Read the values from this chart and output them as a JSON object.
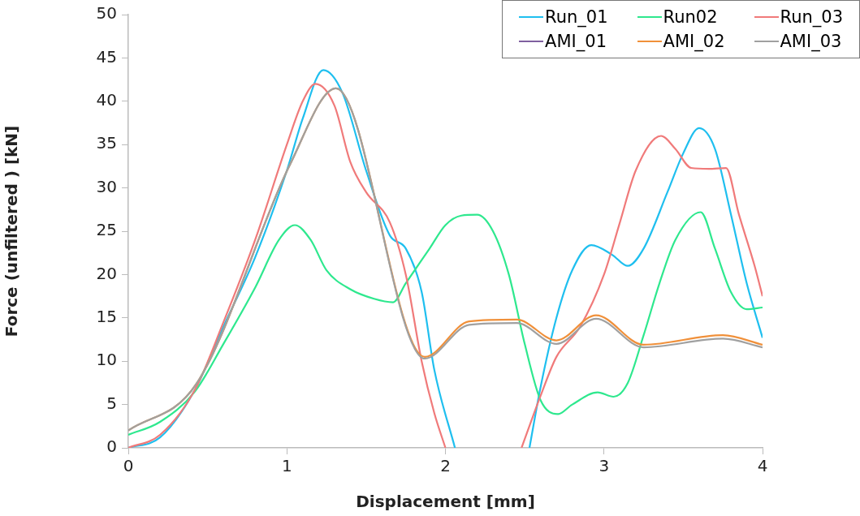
{
  "chart_data": {
    "type": "line",
    "xlabel": "Displacement [mm]",
    "ylabel": "Force (unfiltered ) [kN]",
    "xlim": [
      0,
      4
    ],
    "xticks": [
      0,
      1,
      2,
      3,
      4
    ],
    "ylim": [
      0,
      50
    ],
    "yticks": [
      0,
      5,
      10,
      15,
      20,
      25,
      30,
      35,
      40,
      45,
      50
    ],
    "grid": false,
    "legend": "top right",
    "marker": "none",
    "line_style": "solid",
    "series": [
      {
        "name": "Run_01",
        "color": "#1fbfef",
        "x": [
          0,
          0.2,
          0.42,
          0.6,
          0.8,
          1.0,
          1.1,
          1.23,
          1.35,
          1.5,
          1.65,
          1.75,
          1.85,
          1.93,
          2.06,
          2.3,
          2.53,
          2.6,
          2.7,
          2.8,
          2.92,
          3.05,
          3.15,
          3.25,
          3.4,
          3.5,
          3.6,
          3.7,
          3.8,
          3.9,
          4.0
        ],
        "values": [
          0,
          1.2,
          6.7,
          14,
          22,
          32,
          38,
          43.6,
          41,
          32,
          24.5,
          23,
          18,
          9,
          0,
          null,
          0,
          7,
          15,
          20.5,
          23.4,
          22.3,
          21,
          23,
          29.5,
          34,
          36.9,
          34.5,
          27,
          19,
          12.7
        ]
      },
      {
        "name": "Run02",
        "color": "#2ee88e",
        "x": [
          0,
          0.2,
          0.42,
          0.6,
          0.8,
          0.95,
          1.05,
          1.15,
          1.25,
          1.4,
          1.55,
          1.67,
          1.75,
          1.9,
          2.0,
          2.1,
          2.2,
          2.3,
          2.4,
          2.5,
          2.6,
          2.71,
          2.8,
          2.96,
          3.06,
          3.15,
          3.25,
          3.35,
          3.45,
          3.61,
          3.7,
          3.8,
          3.9,
          4.0
        ],
        "values": [
          1.5,
          3,
          6.5,
          12,
          18.5,
          24,
          25.7,
          24,
          20.5,
          18.3,
          17.2,
          16.8,
          19,
          23,
          25.7,
          26.8,
          26.9,
          25,
          20,
          12,
          5.5,
          3.9,
          5,
          6.4,
          5.9,
          7.5,
          13,
          19,
          24,
          27.2,
          23,
          18,
          16,
          16.2
        ]
      },
      {
        "name": "Run_03",
        "color": "#f07a7a",
        "x": [
          0,
          0.2,
          0.42,
          0.6,
          0.8,
          1.0,
          1.1,
          1.18,
          1.3,
          1.4,
          1.5,
          1.65,
          1.75,
          1.85,
          1.93,
          2.0,
          2.2,
          2.48,
          2.6,
          2.7,
          2.85,
          3.0,
          3.1,
          3.2,
          3.36,
          3.45,
          3.55,
          3.66,
          3.77,
          3.85,
          3.95,
          4.0
        ],
        "values": [
          0,
          1.5,
          6.7,
          14.5,
          24,
          35,
          40,
          42,
          39.5,
          33,
          29.5,
          26,
          20,
          10,
          4,
          0,
          null,
          0,
          6,
          10.5,
          14,
          20,
          26,
          32,
          36,
          34.5,
          32.3,
          32.2,
          32.3,
          27,
          21,
          17.5
        ]
      },
      {
        "name": "AMI_01",
        "color": "#7f5f9f"
      },
      {
        "name": "AMI_02",
        "color": "#f0903a",
        "x": [
          0,
          0.43,
          1.02,
          1.31,
          1.87,
          2.15,
          2.45,
          2.7,
          2.95,
          3.25,
          3.75,
          4.0
        ],
        "values": [
          2,
          7.4,
          32.7,
          41.5,
          10.5,
          14.6,
          14.8,
          12.4,
          15.3,
          11.9,
          13,
          11.9
        ]
      },
      {
        "name": "AMI_03",
        "color": "#a0a0a0",
        "x": [
          0,
          0.43,
          1.02,
          1.31,
          1.87,
          2.15,
          2.45,
          2.7,
          2.95,
          3.25,
          3.75,
          4.0
        ],
        "values": [
          2,
          7.4,
          32.7,
          41.5,
          10.3,
          14.2,
          14.4,
          12,
          14.9,
          11.6,
          12.6,
          11.6
        ]
      }
    ]
  }
}
